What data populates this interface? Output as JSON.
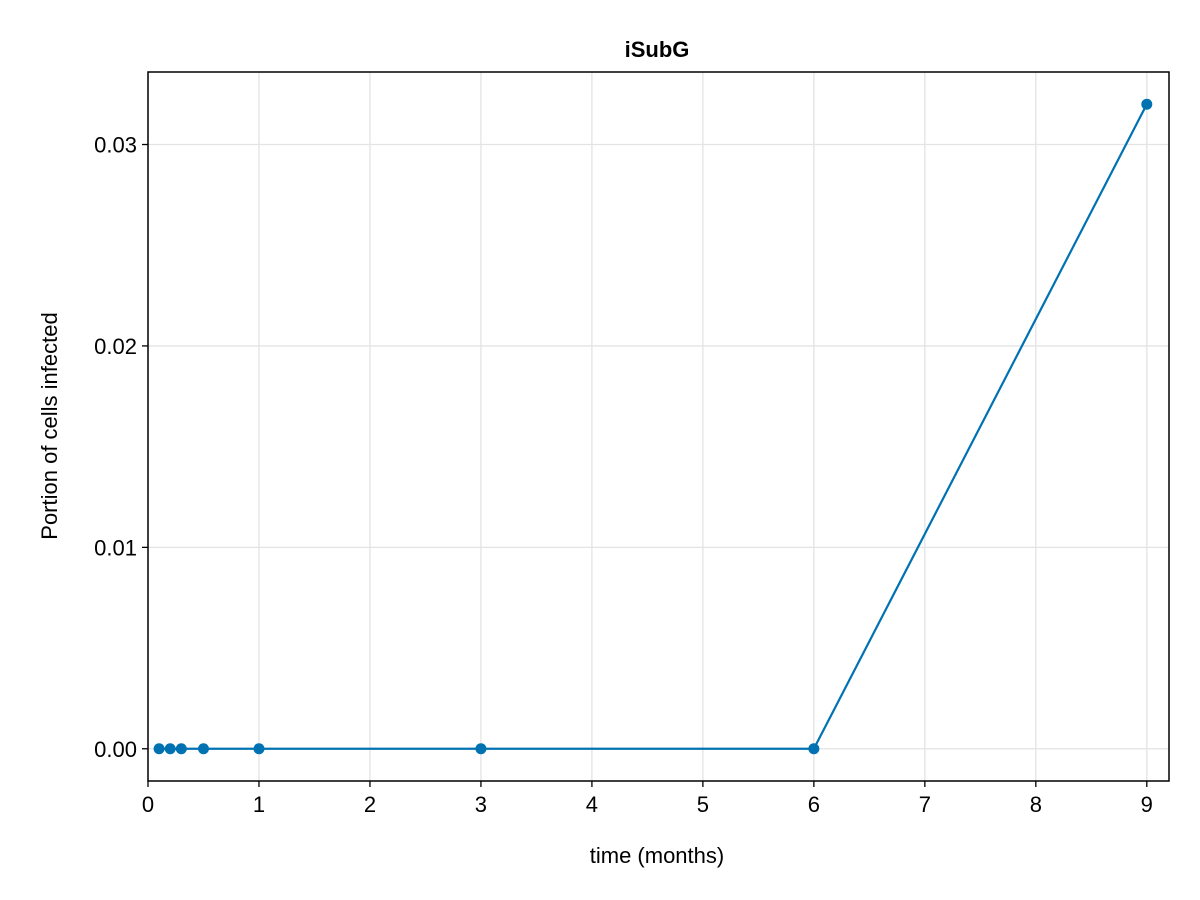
{
  "chart_data": {
    "type": "line",
    "title": "iSubG",
    "xlabel": "time (months)",
    "ylabel": "Portion of cells infected",
    "xlim": [
      0,
      9.2
    ],
    "ylim": [
      -0.0016,
      0.0336
    ],
    "xticks": [
      0,
      1,
      2,
      3,
      4,
      5,
      6,
      7,
      8,
      9
    ],
    "xtick_labels": [
      "0",
      "1",
      "2",
      "3",
      "4",
      "5",
      "6",
      "7",
      "8",
      "9"
    ],
    "yticks": [
      0.0,
      0.01,
      0.02,
      0.03
    ],
    "ytick_labels": [
      "0.00",
      "0.01",
      "0.02",
      "0.03"
    ],
    "grid": true,
    "series": [
      {
        "color": "#0072b2",
        "x": [
          0.1,
          0.2,
          0.3,
          0.5,
          1,
          3,
          6,
          9
        ],
        "y": [
          0.0,
          0.0,
          0.0,
          0.0,
          0.0,
          0.0,
          0.0,
          0.032
        ]
      }
    ]
  }
}
